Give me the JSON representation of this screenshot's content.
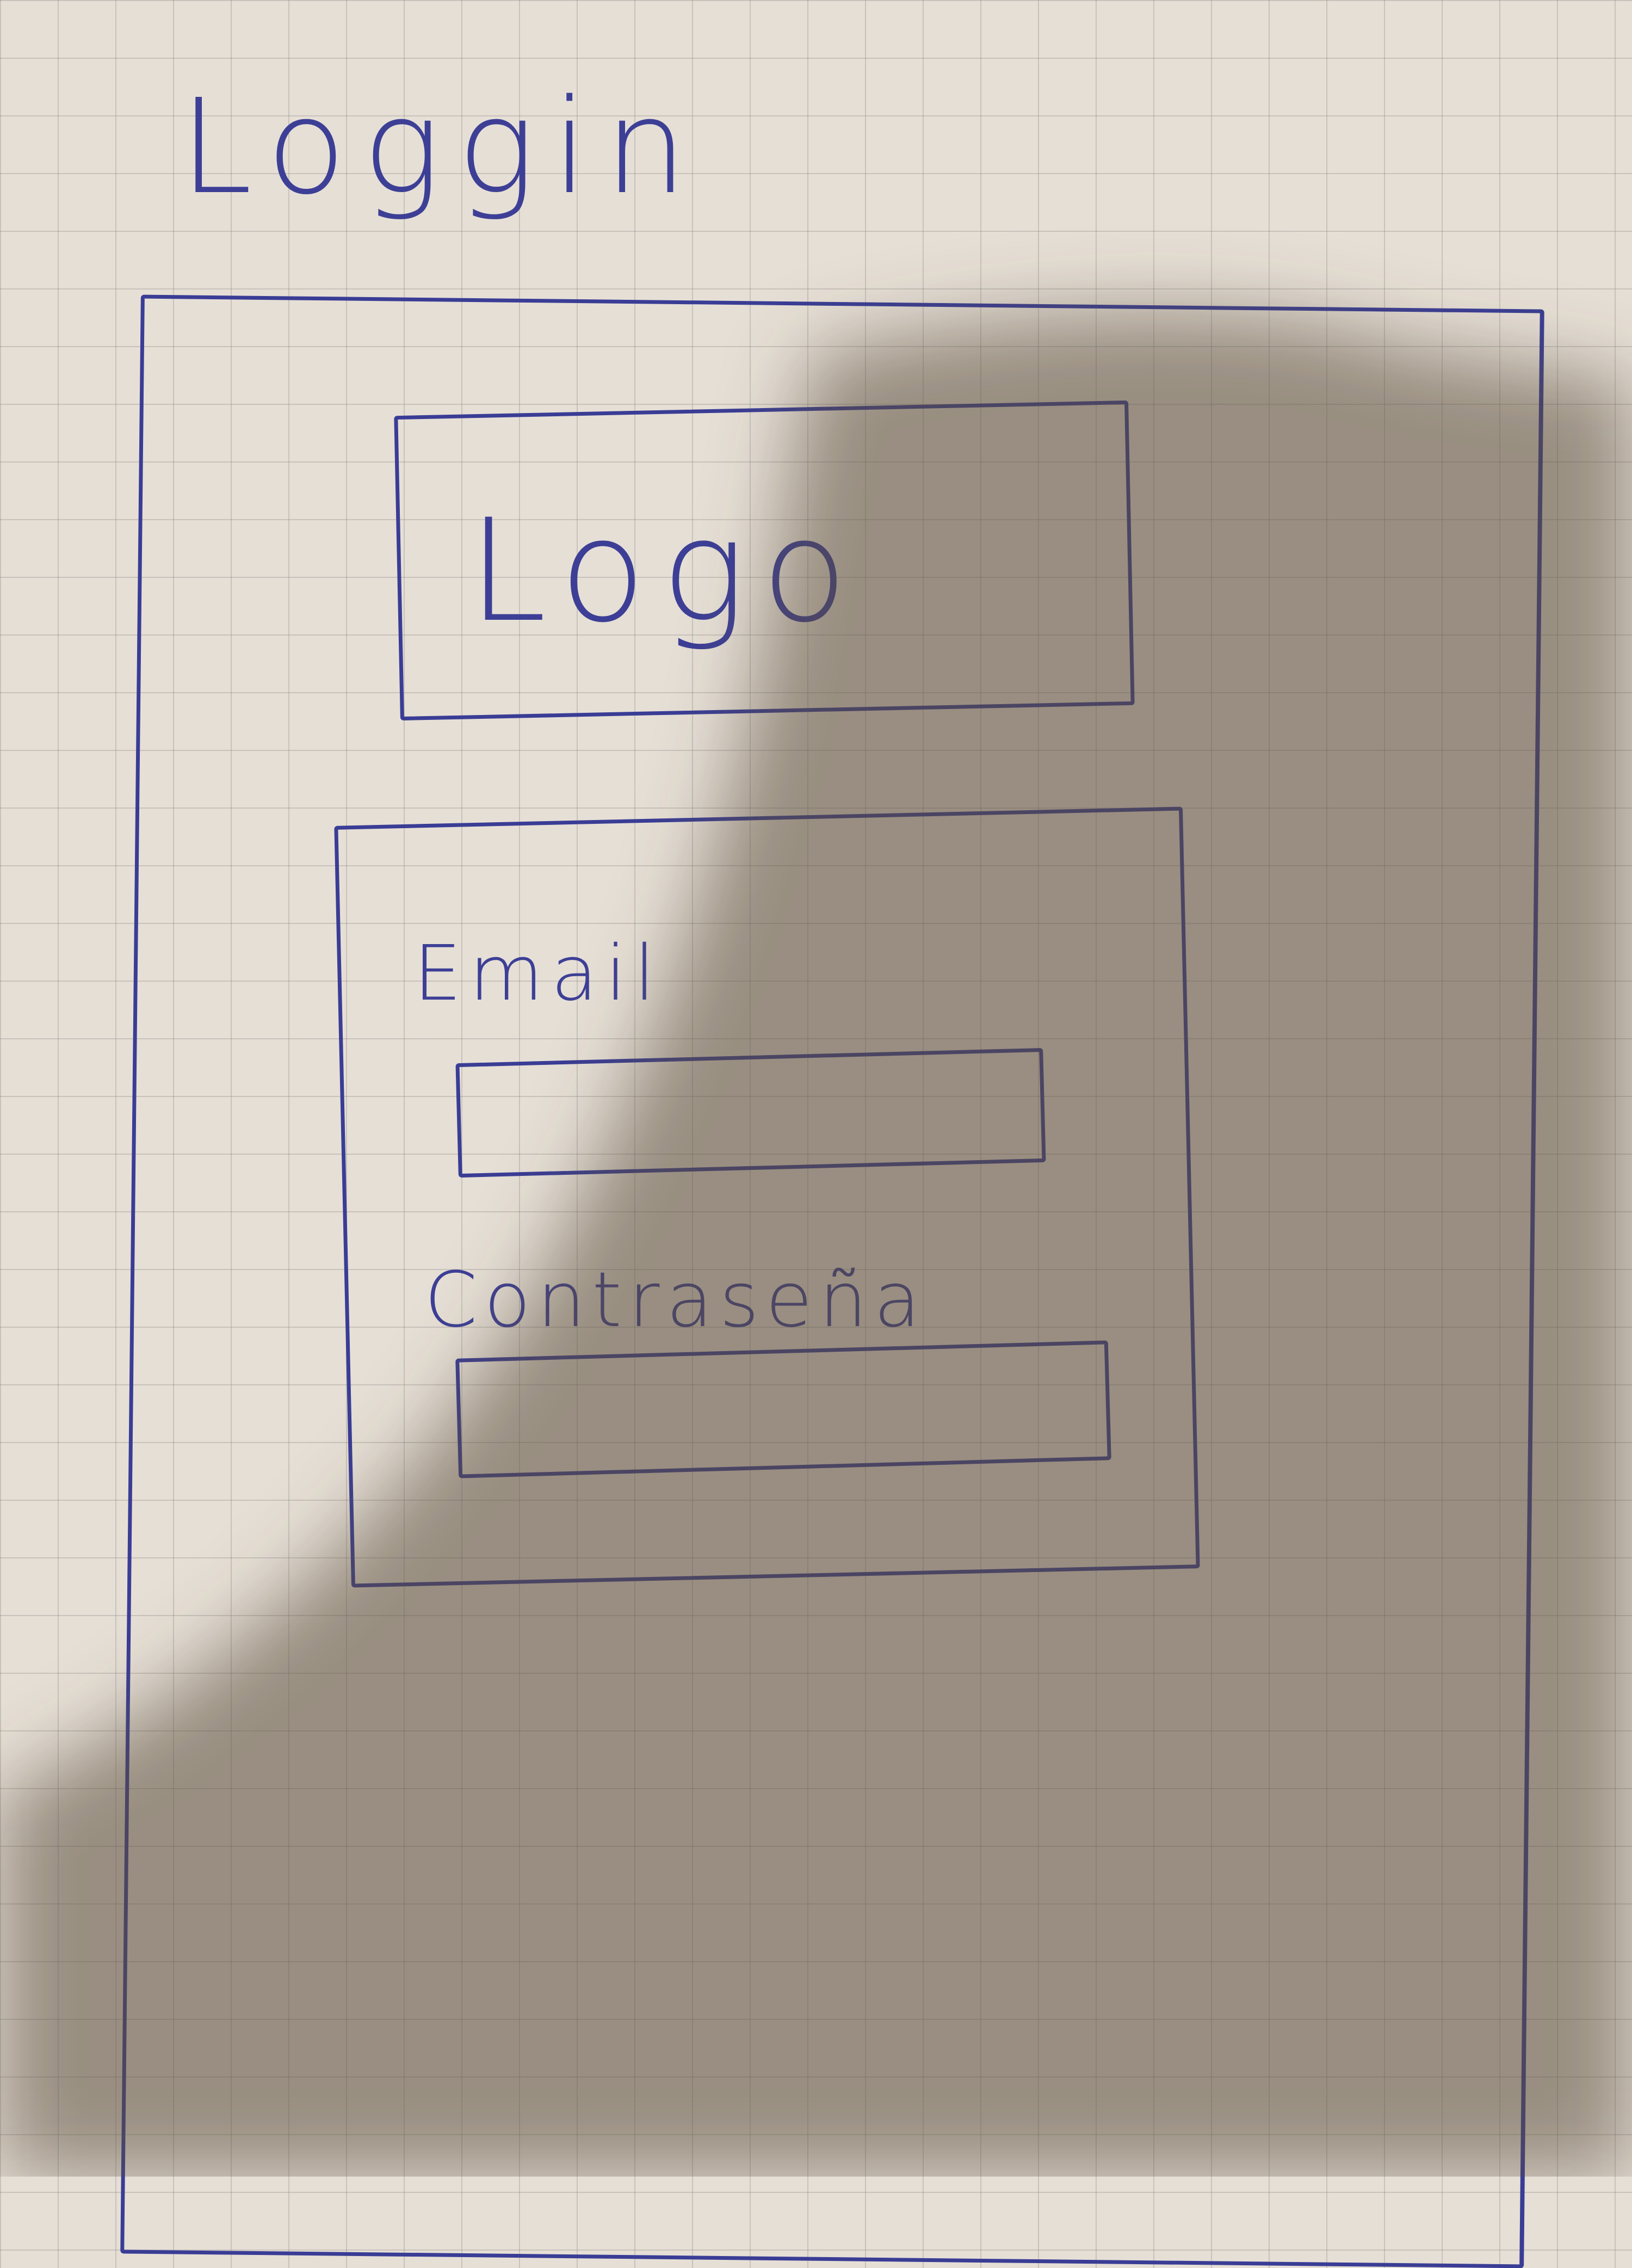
{
  "page": {
    "title": "Loggin"
  },
  "logo": {
    "label": "Logo"
  },
  "form": {
    "email_label": "Email",
    "password_label": "Contraseña"
  },
  "colors": {
    "ink": "#3a3d95",
    "paper": "#e6dfd6",
    "grid": "#9a9a9a",
    "shadow": "#5a4a3a"
  }
}
